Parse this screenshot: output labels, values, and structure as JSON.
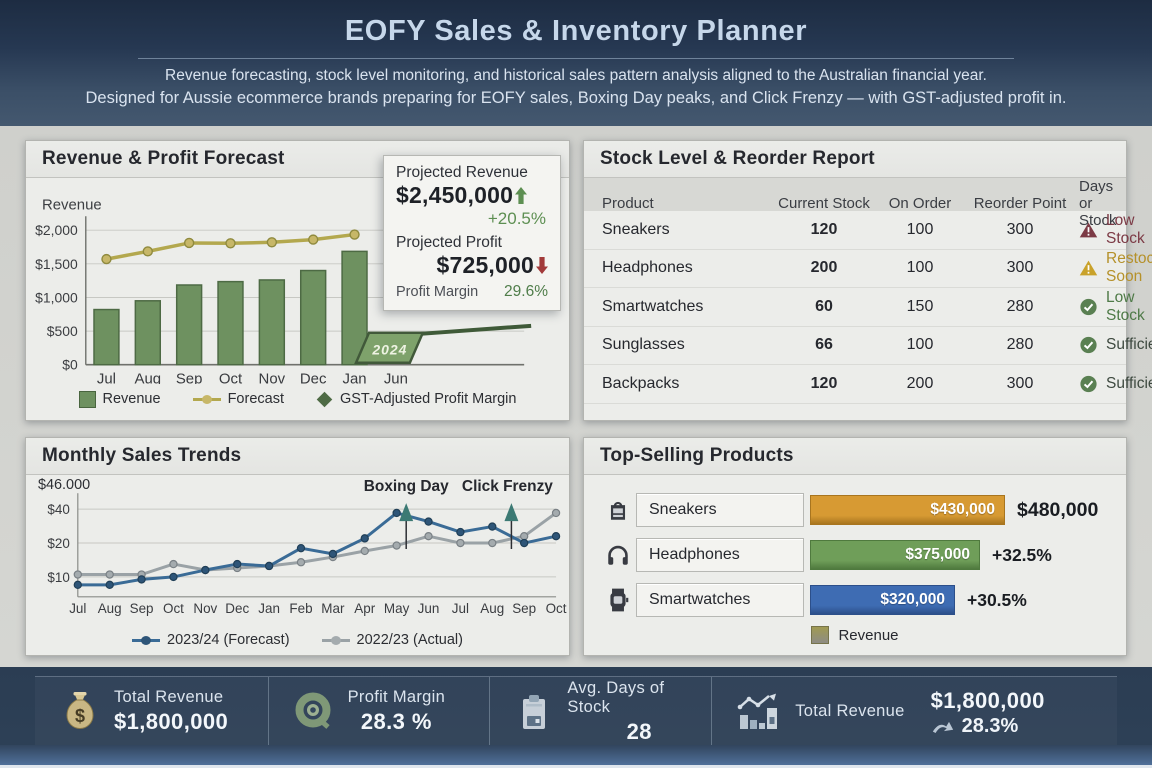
{
  "header": {
    "title": "EOFY Sales & Inventory Planner",
    "subtitle_line1": "Revenue forecasting, stock level monitoring, and historical sales pattern analysis aligned to the Australian financial year.",
    "subtitle_line2": "Designed for Aussie ecommerce brands preparing for EOFY sales, Boxing Day peaks, and Click Frenzy — with GST-adjusted profit in."
  },
  "forecast_panel": {
    "title": "Revenue & Profit Forecast",
    "axis_title": "Revenue",
    "year_tag": "2024",
    "overlay": {
      "revenue_label": "Projected Revenue",
      "revenue_value": "$2,450,000",
      "revenue_delta": "+20.5%",
      "profit_label": "Projected Profit",
      "profit_value": "$725,000",
      "margin_label": "Profit Margin",
      "margin_value": "29.6%"
    },
    "legend": [
      {
        "label": "Revenue",
        "swatch": "square",
        "color": "#6e9160"
      },
      {
        "label": "Forecast",
        "swatch": "line-dot",
        "color": "#b3a84e",
        "dot_color": "#c7b768"
      },
      {
        "label": "GST-Adjusted Profit Margin",
        "swatch": "diamond",
        "color": "#4e6b45"
      }
    ]
  },
  "stock_panel": {
    "title": "Stock Level & Reorder Report",
    "columns": [
      "Product",
      "Current Stock",
      "On Order",
      "Reorder Point",
      "Days or Stock"
    ],
    "rows": [
      {
        "product": "Sneakers",
        "current_stock": "120",
        "on_order": "100",
        "reorder_point": "300",
        "status": {
          "icon": "warning-triangle",
          "icon_color": "#7c3a45",
          "text": "Low Stock",
          "text_color": "#7c3a45"
        }
      },
      {
        "product": "Headphones",
        "current_stock": "200",
        "on_order": "100",
        "reorder_point": "300",
        "status": {
          "icon": "warning-triangle",
          "icon_color": "#c9a22a",
          "text": "Restock Soon",
          "text_color": "#b5912a"
        }
      },
      {
        "product": "Smartwatches",
        "current_stock": "60",
        "on_order": "150",
        "reorder_point": "280",
        "status": {
          "icon": "check-circle",
          "icon_color": "#5a8052",
          "text": "Low Stock",
          "text_color": "#4e7a47"
        }
      },
      {
        "product": "Sunglasses",
        "current_stock": "66",
        "on_order": "100",
        "reorder_point": "280",
        "status": {
          "icon": "check-circle",
          "icon_color": "#5a8052",
          "text": "Sufficient",
          "text_color": "#3e4a40"
        }
      },
      {
        "product": "Backpacks",
        "current_stock": "120",
        "on_order": "200",
        "reorder_point": "300",
        "status": {
          "icon": "check-circle",
          "icon_color": "#5a8052",
          "text": "Sufficient",
          "text_color": "#3e4a40"
        }
      }
    ]
  },
  "trends_panel": {
    "title": "Monthly Sales Trends",
    "top_axis_label": "$46.000",
    "legend": [
      {
        "label": "2023/24 (Forecast)",
        "color": "#3a6b96",
        "dot_color": "#2e5578"
      },
      {
        "label": "2022/23 (Actual)",
        "color": "#9aa2a6",
        "dot_color": "#a4abae"
      }
    ]
  },
  "top_products_panel": {
    "title": "Top-Selling Products",
    "legend_label": "Revenue",
    "items": [
      {
        "name": "Sneakers",
        "icon": "sneakers-product-icon",
        "bar_label": "$430,000",
        "value": 430000,
        "right_label": "$480,000",
        "color": "#d79a33",
        "border_color": "#a8751f"
      },
      {
        "name": "Headphones",
        "icon": "headphones-product-icon",
        "bar_label": "$375,000",
        "value": 375000,
        "right_label": "+32.5%",
        "color": "#6f9e59",
        "border_color": "#4f7a3e"
      },
      {
        "name": "Smartwatches",
        "icon": "smartwatch-product-icon",
        "bar_label": "$320,000",
        "value": 320000,
        "right_label": "+30.5%",
        "color": "#3e6cb3",
        "border_color": "#2c4f8a"
      }
    ]
  },
  "footer": {
    "kpis": [
      {
        "icon": "money-bag-icon",
        "label": "Total Revenue",
        "value": "$1,800,000"
      },
      {
        "icon": "profit-ring-icon",
        "label": "Profit Margin",
        "value": "28.3 %"
      },
      {
        "icon": "clipboard-icon",
        "label": "Avg. Days of Stock",
        "value": "28"
      },
      {
        "icon": "bar-chart-icon",
        "label": "Total Revenue",
        "value": "$1,800,000",
        "sub_value": "28.3%"
      }
    ]
  },
  "chart_data": [
    {
      "type": "bar",
      "title": "Revenue & Profit Forecast",
      "categories": [
        "Jul",
        "Aug",
        "Sep",
        "Oct",
        "Nov",
        "Dec",
        "Jan",
        "Jun"
      ],
      "series": [
        {
          "name": "Revenue",
          "type": "bar",
          "color": "#6e9160",
          "values": [
            820,
            950,
            1185,
            1235,
            1260,
            1400,
            1685,
            null
          ]
        },
        {
          "name": "Forecast",
          "type": "line",
          "color": "#b3a84e",
          "values": [
            1570,
            1685,
            1810,
            1805,
            1820,
            1860,
            1935,
            null
          ]
        }
      ],
      "ylabel": "Revenue",
      "ylim": [
        0,
        2000
      ],
      "ytick_values": [
        0,
        500,
        1000,
        1500,
        2000
      ],
      "ytick_labels": [
        "$0",
        "$500",
        "$1,000",
        "$1,500",
        "$2,000"
      ],
      "grid": true,
      "legend_position": "bottom",
      "annotation_tag": {
        "text": "2024",
        "x_index": 7
      }
    },
    {
      "type": "line",
      "title": "Monthly Sales Trends",
      "categories": [
        "Jul",
        "Aug",
        "Sep",
        "Oct",
        "Nov",
        "Dec",
        "Jan",
        "Feb",
        "Mar",
        "Apr",
        "May",
        "Jun",
        "Jul",
        "Aug",
        "Sep",
        "Oct"
      ],
      "series": [
        {
          "name": "2023/24 (Forecast)",
          "color": "#3a6b96",
          "marker_fill": "#2e5578",
          "marker_stroke": "#203f57",
          "values": [
            8.5,
            8.5,
            9.5,
            10,
            11.5,
            13,
            12.5,
            18,
            16,
            22,
            37,
            31,
            25,
            28,
            20,
            23
          ]
        },
        {
          "name": "2022/23 (Actual)",
          "color": "#9aa2a6",
          "marker_fill": "#a4abae",
          "marker_stroke": "#798085",
          "values": [
            10.5,
            10.5,
            10.5,
            13,
            11.5,
            12,
            12.5,
            13.5,
            15,
            17,
            19,
            23,
            20,
            20,
            23,
            37
          ]
        }
      ],
      "y_scale": "log",
      "ytick_values": [
        10,
        20,
        40
      ],
      "ytick_labels": [
        "$10",
        "$20",
        "$40"
      ],
      "top_axis_label": "$46.000",
      "grid": true,
      "legend_position": "bottom",
      "annotations": [
        {
          "text": "Boxing Day",
          "x_index": 10.3,
          "text_dx": 0
        },
        {
          "text": "Click Frenzy",
          "x_index": 13.6,
          "text_dx": -4
        }
      ]
    },
    {
      "type": "bar",
      "title": "Top-Selling Products",
      "categories": [
        "Sneakers",
        "Headphones",
        "Smartwatches"
      ],
      "values": [
        430000,
        375000,
        320000
      ],
      "bar_labels": [
        "$430,000",
        "$375,000",
        "$320,000"
      ],
      "secondary_labels": [
        "$480,000",
        "+32.5%",
        "+30.5%"
      ],
      "colors": [
        "#d79a33",
        "#6f9e59",
        "#3e6cb3"
      ],
      "legend": [
        "Revenue"
      ]
    }
  ]
}
